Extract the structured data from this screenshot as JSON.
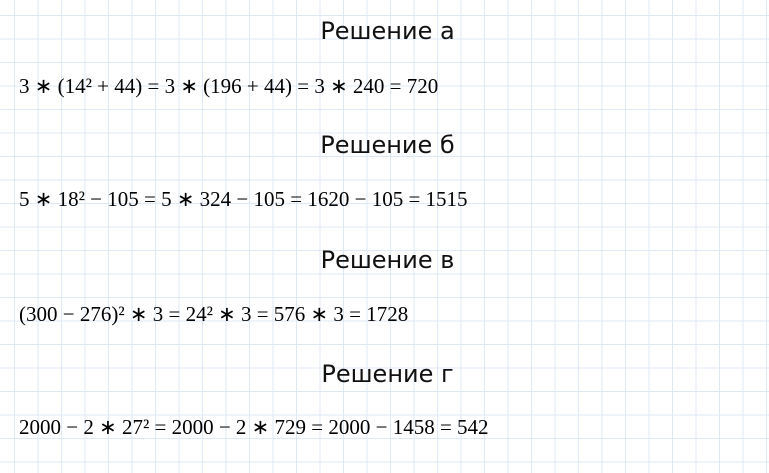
{
  "solutions": [
    {
      "title": "Решение а",
      "equation": "3 ∗ (14² + 44) = 3 ∗ (196 + 44) = 3 ∗ 240 = 720"
    },
    {
      "title": "Решение б",
      "equation": "5 ∗ 18² − 105 = 5 ∗ 324 − 105 = 1620 − 105 = 1515"
    },
    {
      "title": "Решение в",
      "equation": "(300 − 276)² ∗ 3 = 24² ∗ 3 = 576 ∗ 3 = 1728"
    },
    {
      "title": "Решение г",
      "equation": "2000 − 2 ∗ 27² = 2000 − 2 ∗ 729 = 2000 − 1458 = 542"
    }
  ]
}
